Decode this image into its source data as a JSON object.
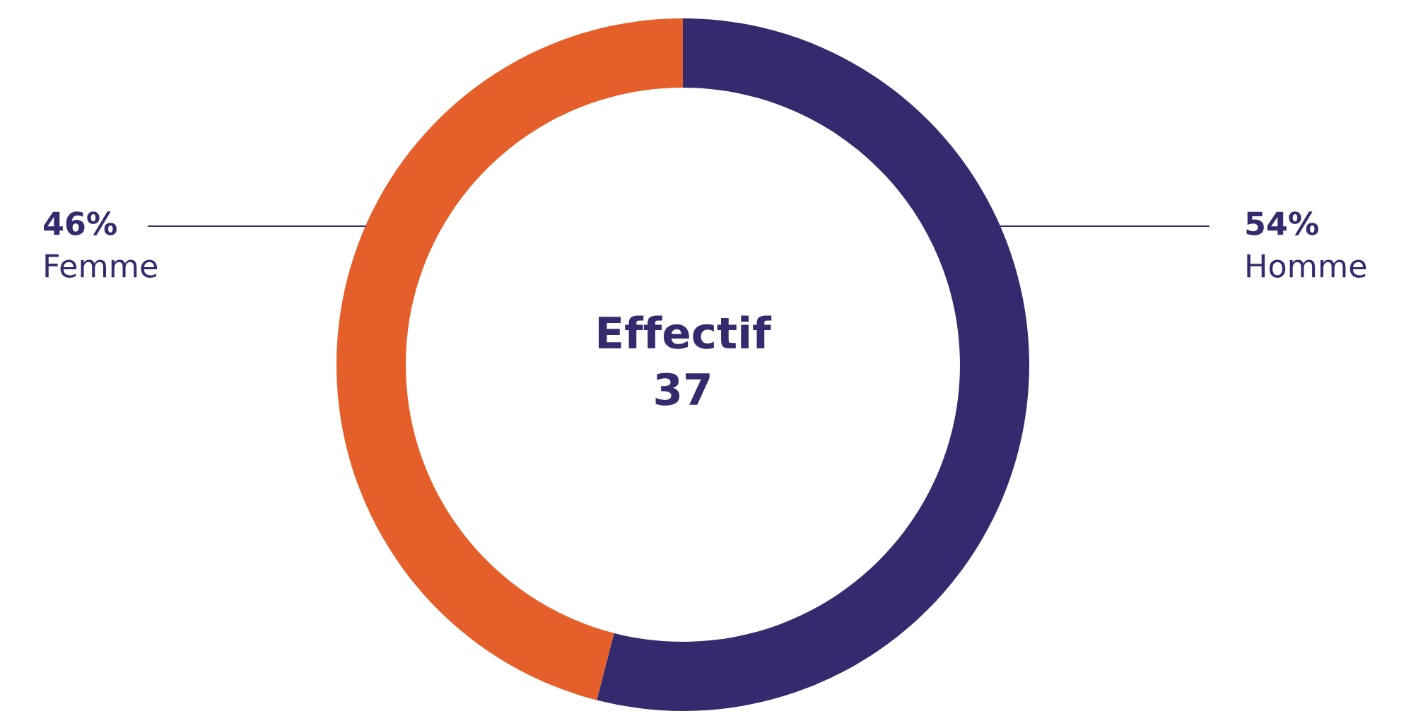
{
  "chart_data": {
    "type": "donut",
    "categories": [
      "Homme",
      "Femme"
    ],
    "values": [
      54,
      46
    ],
    "colors": [
      "#352a6e",
      "#e55f2a"
    ],
    "value_labels": [
      "54%",
      "46%"
    ],
    "annotations": [
      "Effectif",
      "37"
    ]
  }
}
